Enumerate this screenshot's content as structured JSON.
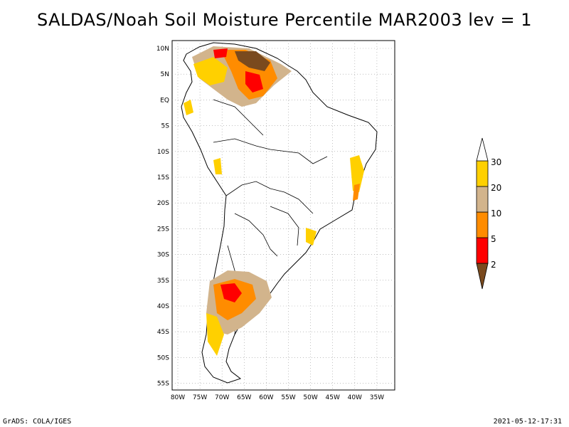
{
  "title": "SALDAS/Noah Soil Moisture Percentile MAR2003 lev = 1",
  "footer": {
    "left": "GrADS: COLA/IGES",
    "right": "2021-05-12-17:31"
  },
  "map": {
    "lat_labels": [
      "10N",
      "5N",
      "EQ",
      "5S",
      "10S",
      "15S",
      "20S",
      "25S",
      "30S",
      "35S",
      "40S",
      "45S",
      "50S",
      "55S"
    ],
    "lon_labels": [
      "80W",
      "75W",
      "70W",
      "65W",
      "60W",
      "55W",
      "50W",
      "45W",
      "40W",
      "35W"
    ],
    "grid": true
  },
  "legend": {
    "levels": [
      "2",
      "5",
      "10",
      "20",
      "30"
    ],
    "colors": {
      "below2": "#7a4a1e",
      "2to5": "#ff0000",
      "5to10": "#ff8c00",
      "10to20": "#d2b48c",
      "20to30": "#ffd000",
      "above30": "#ffffff"
    }
  }
}
